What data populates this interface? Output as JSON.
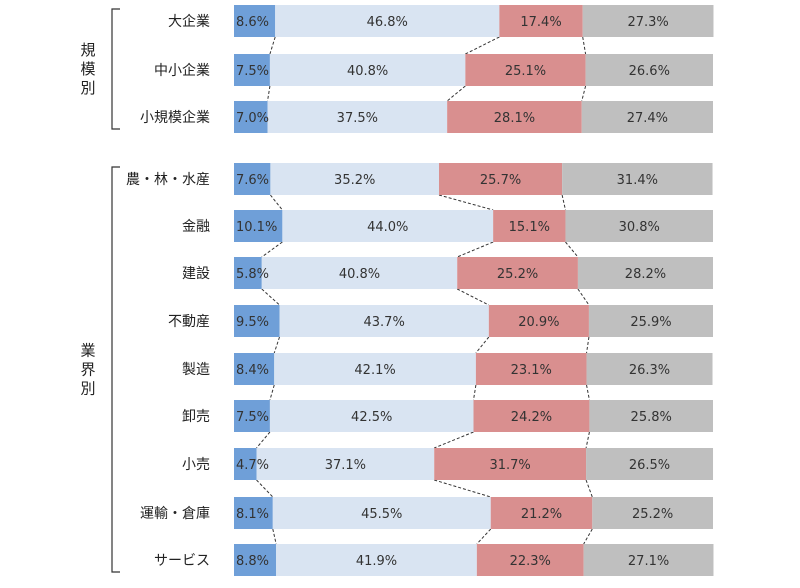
{
  "chart_data": {
    "type": "bar",
    "orientation": "horizontal",
    "stacked": "100%",
    "xlim": [
      0,
      100
    ],
    "grid": false,
    "legend": "none",
    "colors": [
      "#6f9fd8",
      "#d9e4f2",
      "#d98f8f",
      "#bfbfbf"
    ],
    "series": [
      {
        "values": [
          8.6,
          7.5,
          7.0,
          7.6,
          10.1,
          5.8,
          9.5,
          8.4,
          7.5,
          4.7,
          8.1,
          8.8
        ]
      },
      {
        "values": [
          46.8,
          40.8,
          37.5,
          35.2,
          44.0,
          40.8,
          43.7,
          42.1,
          42.5,
          37.1,
          45.5,
          41.9
        ]
      },
      {
        "values": [
          17.4,
          25.1,
          28.1,
          25.7,
          15.1,
          25.2,
          20.9,
          23.1,
          24.2,
          31.7,
          21.2,
          22.3
        ]
      },
      {
        "values": [
          27.3,
          26.6,
          27.4,
          31.4,
          30.8,
          28.2,
          25.9,
          26.3,
          25.8,
          26.5,
          25.2,
          27.1
        ]
      }
    ],
    "groups": [
      {
        "label": "規模別",
        "categories": [
          "大企業",
          "中小企業",
          "小規模企業"
        ]
      },
      {
        "label": "業界別",
        "categories": [
          "農・林・水産",
          "金融",
          "建設",
          "不動産",
          "製造",
          "卸売",
          "小売",
          "運輸・倉庫",
          "サービス"
        ]
      }
    ]
  }
}
